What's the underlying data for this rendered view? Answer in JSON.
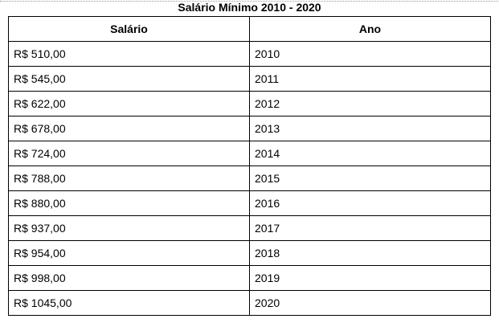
{
  "title": "Salário Mínimo 2010 - 2020",
  "table": {
    "headers": [
      "Salário",
      "Ano"
    ],
    "rows": [
      {
        "salario": "R$ 510,00",
        "ano": "2010"
      },
      {
        "salario": "R$ 545,00",
        "ano": "2011"
      },
      {
        "salario": "R$ 622,00",
        "ano": "2012"
      },
      {
        "salario": "R$ 678,00",
        "ano": "2013"
      },
      {
        "salario": "R$ 724,00",
        "ano": "2014"
      },
      {
        "salario": "R$ 788,00",
        "ano": "2015"
      },
      {
        "salario": "R$ 880,00",
        "ano": "2016"
      },
      {
        "salario": "R$ 937,00",
        "ano": "2017"
      },
      {
        "salario": "R$ 954,00",
        "ano": "2018"
      },
      {
        "salario": "R$ 998,00",
        "ano": "2019"
      },
      {
        "salario": "R$ 1045,00",
        "ano": "2020"
      }
    ]
  }
}
